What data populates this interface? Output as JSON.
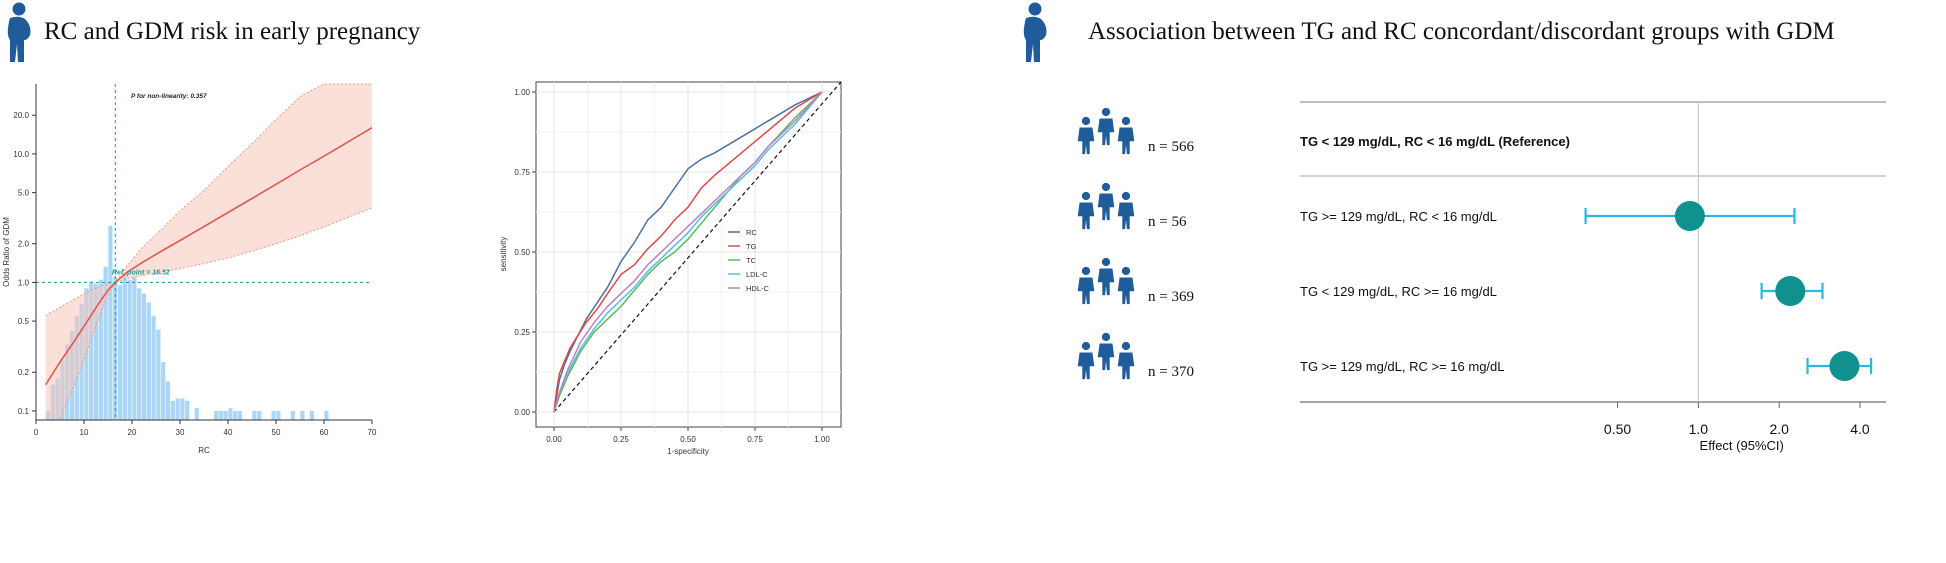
{
  "panels": {
    "left_title": "RC and GDM risk in early pregnancy",
    "right_title": "Association between TG and RC concordant/discordant groups with GDM"
  },
  "icons": {
    "panel_icon": "pregnant-woman-icon",
    "group_icon": "people-group-icon",
    "icon_color": "#1f5c99"
  },
  "chart_data": [
    {
      "type": "line",
      "subtype": "restricted-cubic-spline-with-histogram",
      "xlabel": "RC",
      "ylabel": "Odds Ratio of GDM",
      "xlim": [
        0,
        70
      ],
      "x_ticks": [
        "0",
        "10",
        "20",
        "30",
        "40",
        "50",
        "60",
        "70"
      ],
      "y_scale": "log",
      "y_ticks": [
        "0.1",
        "0.2",
        "0.5",
        "1.0",
        "2.0",
        "5.0",
        "10.0",
        "20.0"
      ],
      "ylim": [
        0.085,
        35
      ],
      "annotations": {
        "p_nonlinearity": "P for non-linearity: 0.357",
        "ref_point": "Ref. point = 16.52"
      },
      "ref_x": 16.52,
      "ref_y": 1.0,
      "spline": {
        "x": [
          2,
          5,
          8,
          11,
          13,
          15,
          16.52,
          19,
          22,
          26,
          30,
          35,
          40,
          45,
          50,
          55,
          60,
          65,
          70
        ],
        "or": [
          0.16,
          0.24,
          0.35,
          0.52,
          0.68,
          0.87,
          1.0,
          1.2,
          1.42,
          1.74,
          2.12,
          2.72,
          3.5,
          4.5,
          5.8,
          7.5,
          9.6,
          12.4,
          16.0
        ],
        "lower": [
          0.04,
          0.08,
          0.16,
          0.32,
          0.52,
          0.8,
          1.0,
          1.07,
          1.13,
          1.2,
          1.28,
          1.4,
          1.55,
          1.75,
          2.0,
          2.3,
          2.7,
          3.2,
          3.8
        ],
        "upper": [
          0.55,
          0.64,
          0.74,
          0.85,
          0.92,
          0.98,
          1.0,
          1.35,
          1.85,
          2.55,
          3.6,
          5.2,
          8.0,
          12.0,
          18.5,
          28.0,
          35.0,
          35.0,
          35.0
        ]
      },
      "histogram": {
        "bin_width": 1,
        "bins": [
          [
            2,
            0.1
          ],
          [
            3,
            0.16
          ],
          [
            4,
            0.18
          ],
          [
            5,
            0.25
          ],
          [
            6,
            0.33
          ],
          [
            7,
            0.42
          ],
          [
            8,
            0.55
          ],
          [
            9,
            0.68
          ],
          [
            10,
            0.9
          ],
          [
            11,
            1.0
          ],
          [
            12,
            0.98
          ],
          [
            13,
            1.05
          ],
          [
            14,
            1.32
          ],
          [
            15,
            2.75
          ],
          [
            16,
            1.1
          ],
          [
            17,
            0.95
          ],
          [
            18,
            1.15
          ],
          [
            19,
            1.05
          ],
          [
            20,
            1.1
          ],
          [
            21,
            0.9
          ],
          [
            22,
            0.82
          ],
          [
            23,
            0.7
          ],
          [
            24,
            0.55
          ],
          [
            25,
            0.43
          ],
          [
            26,
            0.24
          ],
          [
            27,
            0.17
          ],
          [
            28,
            0.12
          ],
          [
            29,
            0.125
          ],
          [
            30,
            0.125
          ],
          [
            31,
            0.12
          ],
          [
            33,
            0.105
          ],
          [
            37,
            0.1
          ],
          [
            38,
            0.1
          ],
          [
            39,
            0.1
          ],
          [
            40,
            0.105
          ],
          [
            41,
            0.1
          ],
          [
            42,
            0.1
          ],
          [
            45,
            0.1
          ],
          [
            46,
            0.1
          ],
          [
            49,
            0.1
          ],
          [
            50,
            0.1
          ],
          [
            53,
            0.1
          ],
          [
            55,
            0.1
          ],
          [
            57,
            0.1
          ],
          [
            60,
            0.1
          ]
        ]
      }
    },
    {
      "type": "line",
      "subtype": "roc",
      "xlabel": "1-specificity",
      "ylabel": "sensitivity",
      "xlim": [
        0,
        1
      ],
      "ylim": [
        0,
        1
      ],
      "x_ticks": [
        "0.00",
        "0.25",
        "0.50",
        "0.75",
        "1.00"
      ],
      "y_ticks": [
        "0.00",
        "0.25",
        "0.50",
        "0.75",
        "1.00"
      ],
      "grid": true,
      "legend_position": "right",
      "series": [
        {
          "name": "RC",
          "color": "#4a73a0",
          "x": [
            0,
            0.01,
            0.02,
            0.04,
            0.06,
            0.09,
            0.12,
            0.16,
            0.2,
            0.25,
            0.3,
            0.35,
            0.4,
            0.45,
            0.5,
            0.55,
            0.6,
            0.7,
            0.8,
            0.9,
            1.0
          ],
          "y": [
            0,
            0.05,
            0.1,
            0.15,
            0.19,
            0.24,
            0.29,
            0.34,
            0.39,
            0.47,
            0.53,
            0.6,
            0.64,
            0.7,
            0.76,
            0.79,
            0.81,
            0.86,
            0.91,
            0.96,
            1.0
          ]
        },
        {
          "name": "TG",
          "color": "#d94a4a",
          "x": [
            0,
            0.01,
            0.02,
            0.04,
            0.06,
            0.09,
            0.12,
            0.16,
            0.2,
            0.25,
            0.3,
            0.35,
            0.4,
            0.45,
            0.5,
            0.55,
            0.6,
            0.7,
            0.8,
            0.9,
            1.0
          ],
          "y": [
            0,
            0.07,
            0.12,
            0.16,
            0.2,
            0.24,
            0.28,
            0.32,
            0.37,
            0.43,
            0.46,
            0.51,
            0.55,
            0.6,
            0.64,
            0.7,
            0.74,
            0.81,
            0.88,
            0.95,
            1.0
          ]
        },
        {
          "name": "TC",
          "color": "#5cb85c",
          "x": [
            0,
            0.02,
            0.05,
            0.1,
            0.15,
            0.2,
            0.25,
            0.3,
            0.35,
            0.4,
            0.45,
            0.5,
            0.55,
            0.6,
            0.65,
            0.7,
            0.75,
            0.8,
            0.9,
            1.0
          ],
          "y": [
            0,
            0.05,
            0.11,
            0.19,
            0.25,
            0.29,
            0.33,
            0.38,
            0.43,
            0.47,
            0.5,
            0.54,
            0.59,
            0.64,
            0.69,
            0.74,
            0.78,
            0.83,
            0.92,
            1.0
          ]
        },
        {
          "name": "LDL-C",
          "color": "#4fc1e9",
          "x": [
            0,
            0.02,
            0.05,
            0.1,
            0.15,
            0.2,
            0.25,
            0.3,
            0.35,
            0.4,
            0.45,
            0.5,
            0.55,
            0.6,
            0.65,
            0.7,
            0.75,
            0.8,
            0.9,
            1.0
          ],
          "y": [
            0,
            0.06,
            0.12,
            0.2,
            0.26,
            0.31,
            0.35,
            0.39,
            0.44,
            0.48,
            0.52,
            0.56,
            0.61,
            0.65,
            0.69,
            0.73,
            0.77,
            0.82,
            0.9,
            1.0
          ]
        },
        {
          "name": "HDL-C",
          "color": "#c27fc2",
          "x": [
            0,
            0.02,
            0.05,
            0.1,
            0.15,
            0.2,
            0.25,
            0.3,
            0.35,
            0.4,
            0.45,
            0.5,
            0.55,
            0.6,
            0.65,
            0.7,
            0.75,
            0.8,
            0.9,
            1.0
          ],
          "y": [
            0,
            0.06,
            0.13,
            0.22,
            0.28,
            0.33,
            0.37,
            0.41,
            0.46,
            0.5,
            0.54,
            0.58,
            0.62,
            0.66,
            0.7,
            0.74,
            0.78,
            0.83,
            0.91,
            1.0
          ]
        }
      ]
    },
    {
      "type": "scatter",
      "subtype": "forest",
      "xlabel": "Effect (95%CI)",
      "x_scale": "log",
      "xlim": [
        0.3,
        5.0
      ],
      "x_ticks": [
        "0.50",
        "1.0",
        "2.0",
        "4.0"
      ],
      "x_tick_values": [
        0.5,
        1.0,
        2.0,
        4.0
      ],
      "reference_value": 1.0,
      "marker_color": "#119090",
      "ci_color": "#2bb7e0",
      "rows": [
        {
          "n": "n = 566",
          "label": "TG < 129 mg/dL, RC < 16 mg/dL (Reference)",
          "bold": true,
          "estimate": null,
          "lower": null,
          "upper": null
        },
        {
          "n": "n = 56",
          "label": "TG >= 129 mg/dL, RC < 16 mg/dL",
          "bold": false,
          "estimate": 0.93,
          "lower": 0.38,
          "upper": 2.28
        },
        {
          "n": "n = 369",
          "label": "TG < 129 mg/dL, RC >= 16 mg/dL",
          "bold": false,
          "estimate": 2.2,
          "lower": 1.72,
          "upper": 2.9
        },
        {
          "n": "n = 370",
          "label": "TG >= 129 mg/dL, RC >= 16 mg/dL",
          "bold": false,
          "estimate": 3.5,
          "lower": 2.55,
          "upper": 4.4
        }
      ]
    }
  ]
}
